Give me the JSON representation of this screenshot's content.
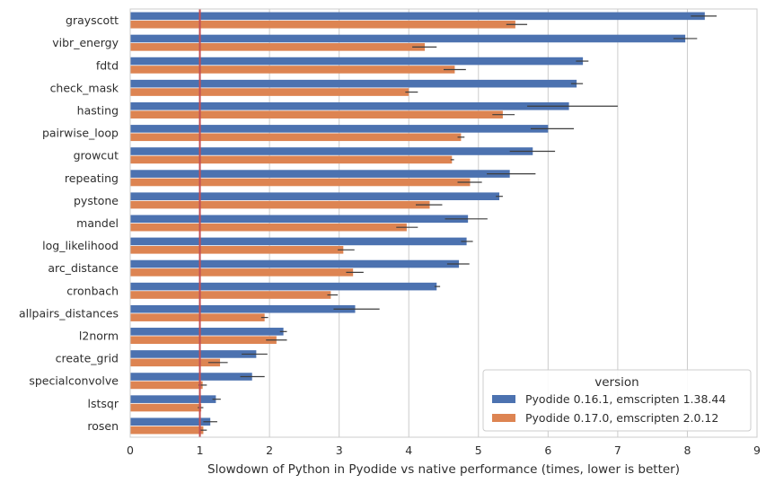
{
  "chart_data": {
    "type": "bar",
    "orientation": "horizontal",
    "xlabel": "Slowdown of Python in Pyodide vs native performance (times, lower is better)",
    "ylabel": "",
    "xlim": [
      0,
      9
    ],
    "xticks": [
      0,
      1,
      2,
      3,
      4,
      5,
      6,
      7,
      8,
      9
    ],
    "reference_line": 1,
    "grid": "vertical",
    "legend_title": "version",
    "legend_position": "lower-right",
    "categories": [
      "grayscott",
      "vibr_energy",
      "fdtd",
      "check_mask",
      "hasting",
      "pairwise_loop",
      "growcut",
      "repeating",
      "pystone",
      "mandel",
      "log_likelihood",
      "arc_distance",
      "cronbach",
      "allpairs_distances",
      "l2norm",
      "create_grid",
      "specialconvolve",
      "lstsqr",
      "rosen"
    ],
    "series": [
      {
        "name": "Pyodide 0.16.1, emscripten 1.38.44",
        "color": "#4c72b0",
        "values": [
          8.25,
          7.97,
          6.5,
          6.41,
          6.3,
          6.0,
          5.78,
          5.45,
          5.3,
          4.85,
          4.83,
          4.72,
          4.4,
          3.23,
          2.2,
          1.81,
          1.75,
          1.23,
          1.15
        ],
        "errors": [
          [
            8.05,
            8.42
          ],
          [
            7.8,
            8.14
          ],
          [
            6.4,
            6.58
          ],
          [
            6.33,
            6.5
          ],
          [
            5.7,
            7.0
          ],
          [
            5.75,
            6.37
          ],
          [
            5.45,
            6.1
          ],
          [
            5.12,
            5.82
          ],
          [
            5.25,
            5.35
          ],
          [
            4.52,
            5.13
          ],
          [
            4.75,
            4.92
          ],
          [
            4.55,
            4.87
          ],
          [
            4.37,
            4.45
          ],
          [
            2.92,
            3.58
          ],
          [
            2.15,
            2.25
          ],
          [
            1.6,
            1.97
          ],
          [
            1.58,
            1.93
          ],
          [
            1.18,
            1.3
          ],
          [
            1.05,
            1.25
          ]
        ]
      },
      {
        "name": "Pyodide 0.17.0, emscripten 2.0.12",
        "color": "#dd8452",
        "values": [
          5.53,
          4.23,
          4.66,
          4.0,
          5.35,
          4.75,
          4.62,
          4.88,
          4.3,
          3.97,
          3.06,
          3.2,
          2.88,
          1.93,
          2.1,
          1.29,
          1.04,
          1.02,
          1.05
        ],
        "errors": [
          [
            5.4,
            5.7
          ],
          [
            4.05,
            4.4
          ],
          [
            4.5,
            4.82
          ],
          [
            3.95,
            4.13
          ],
          [
            5.2,
            5.52
          ],
          [
            4.7,
            4.8
          ],
          [
            4.6,
            4.65
          ],
          [
            4.7,
            5.05
          ],
          [
            4.1,
            4.48
          ],
          [
            3.82,
            4.13
          ],
          [
            2.98,
            3.22
          ],
          [
            3.1,
            3.35
          ],
          [
            2.83,
            2.98
          ],
          [
            1.88,
            1.98
          ],
          [
            1.95,
            2.25
          ],
          [
            1.12,
            1.4
          ],
          [
            0.98,
            1.1
          ],
          [
            0.97,
            1.05
          ],
          [
            1.0,
            1.1
          ]
        ]
      }
    ]
  }
}
